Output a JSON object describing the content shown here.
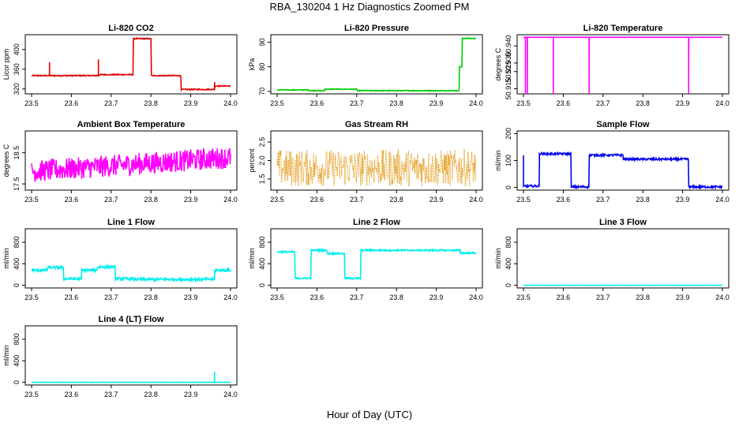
{
  "figure": {
    "title": "RBA_130204  1 Hz Diagnostics Zoomed PM",
    "xlabel": "Hour of Day (UTC)"
  },
  "chart_data": [
    {
      "type": "line",
      "title": "Li-820 CO2",
      "ylabel": "Licor ppm",
      "color": "#e00000",
      "xlim": [
        23.5,
        24.0
      ],
      "ylim": [
        310,
        430
      ],
      "xticks": [
        "23.5",
        "23.6",
        "23.7",
        "23.8",
        "23.9",
        "24.0"
      ],
      "yticks": [
        {
          "v": 320,
          "label": "320"
        },
        {
          "v": 360,
          "label": "360"
        },
        {
          "v": 400,
          "label": "400"
        }
      ],
      "series": [
        {
          "name": "CO2",
          "noise": 1,
          "segments": [
            [
              23.5,
              23.545,
              347
            ],
            [
              23.545,
              23.67,
              347
            ],
            [
              23.67,
              23.755,
              349
            ],
            [
              23.755,
              23.8,
              422
            ],
            [
              23.8,
              23.875,
              347
            ],
            [
              23.875,
              23.96,
              319
            ],
            [
              23.96,
              24.0,
              326
            ]
          ],
          "spikes": [
            [
              23.545,
              374
            ],
            [
              23.668,
              380
            ],
            [
              23.96,
              334
            ]
          ]
        }
      ]
    },
    {
      "type": "line",
      "title": "Li-820 Pressure",
      "ylabel": "kPa",
      "color": "#00cc00",
      "xlim": [
        23.5,
        24.0
      ],
      "ylim": [
        69,
        93
      ],
      "xticks": [
        "23.5",
        "23.6",
        "23.7",
        "23.8",
        "23.9",
        "24.0"
      ],
      "yticks": [
        {
          "v": 70,
          "label": "70"
        },
        {
          "v": 80,
          "label": "80"
        },
        {
          "v": 90,
          "label": "90"
        }
      ],
      "series": [
        {
          "name": "Pressure",
          "noise": 0.15,
          "segments": [
            [
              23.5,
              23.58,
              70.6
            ],
            [
              23.58,
              23.62,
              70.3
            ],
            [
              23.62,
              23.7,
              70.9
            ],
            [
              23.7,
              23.958,
              70.3
            ],
            [
              23.958,
              23.965,
              80
            ],
            [
              23.965,
              24.0,
              91.5
            ]
          ],
          "spikes": []
        }
      ]
    },
    {
      "type": "line",
      "title": "Li-820 Temperature",
      "ylabel": "degrees C",
      "color": "#ff00ff",
      "xlim": [
        23.5,
        24.0
      ],
      "ylim": [
        50.912,
        50.9465
      ],
      "xticks": [
        "23.5",
        "23.6",
        "23.7",
        "23.8",
        "23.9",
        "24.0"
      ],
      "yticks": [
        {
          "v": 50.915,
          "label": "50.915"
        },
        {
          "v": 50.925,
          "label": "50.925"
        },
        {
          "v": 50.93,
          "label": "50.930"
        },
        {
          "v": 50.94,
          "label": "50.940"
        }
      ],
      "series": [
        {
          "name": "Temperature",
          "noise": 0,
          "segments": [
            [
              23.5,
              24.0,
              50.945
            ]
          ],
          "spikes": [
            [
              23.505,
              50.912
            ],
            [
              23.51,
              50.912
            ],
            [
              23.575,
              50.912
            ],
            [
              23.665,
              50.912
            ],
            [
              23.915,
              50.912
            ]
          ]
        }
      ]
    },
    {
      "type": "line",
      "title": "Ambient Box Temperature",
      "ylabel": "degrees C",
      "color": "#ff00ff",
      "xlim": [
        23.5,
        24.0
      ],
      "ylim": [
        17.3,
        19.2
      ],
      "xticks": [
        "23.5",
        "23.6",
        "23.7",
        "23.8",
        "23.9",
        "24.0"
      ],
      "yticks": [
        {
          "v": 17.5,
          "label": "17.5"
        },
        {
          "v": 18.5,
          "label": "18.5"
        }
      ],
      "series": [
        {
          "name": "Box Temp",
          "noise": 0.35,
          "trend": [
            17.9,
            18.35
          ],
          "segments": [
            [
              23.5,
              24.0,
              0
            ]
          ],
          "spikes": []
        }
      ]
    },
    {
      "type": "line",
      "title": "Gas Stream RH",
      "ylabel": "percent",
      "color": "#e09000",
      "dotted": true,
      "xlim": [
        23.5,
        24.0
      ],
      "ylim": [
        1.2,
        2.8
      ],
      "xticks": [
        "23.5",
        "23.6",
        "23.7",
        "23.8",
        "23.9",
        "24.0"
      ],
      "yticks": [
        {
          "v": 1.5,
          "label": "1.5"
        },
        {
          "v": 2.0,
          "label": "2.0"
        },
        {
          "v": 2.5,
          "label": "2.5"
        }
      ],
      "series": [
        {
          "name": "RH",
          "noise": 0.5,
          "trend": [
            1.8,
            1.8
          ],
          "segments": [
            [
              23.5,
              24.0,
              0
            ]
          ],
          "spikes": []
        }
      ]
    },
    {
      "type": "line",
      "title": "Sample Flow",
      "ylabel": "ml/min",
      "color": "#0000ee",
      "xlim": [
        23.5,
        24.0
      ],
      "ylim": [
        -10,
        210
      ],
      "xticks": [
        "23.5",
        "23.6",
        "23.7",
        "23.8",
        "23.9",
        "24.0"
      ],
      "yticks": [
        {
          "v": 0,
          "label": "0"
        },
        {
          "v": 100,
          "label": "100"
        },
        {
          "v": 200,
          "label": "200"
        }
      ],
      "series": [
        {
          "name": "Sample Flow",
          "noise": 4,
          "segments": [
            [
              23.5,
              23.54,
              5
            ],
            [
              23.54,
              23.62,
              125
            ],
            [
              23.62,
              23.665,
              2
            ],
            [
              23.665,
              23.75,
              120
            ],
            [
              23.75,
              23.915,
              105
            ],
            [
              23.915,
              24.0,
              2
            ]
          ],
          "spikes": [
            [
              23.5,
              120
            ],
            [
              23.54,
              100
            ]
          ]
        }
      ]
    },
    {
      "type": "line",
      "title": "Line 1 Flow",
      "ylabel": "ml/min",
      "color": "#00eeee",
      "xlim": [
        23.5,
        24.0
      ],
      "ylim": [
        -50,
        1050
      ],
      "xticks": [
        "23.5",
        "23.6",
        "23.7",
        "23.8",
        "23.9",
        "24.0"
      ],
      "yticks": [
        {
          "v": 0,
          "label": "0"
        },
        {
          "v": 400,
          "label": "400"
        },
        {
          "v": 800,
          "label": "800"
        }
      ],
      "series": [
        {
          "name": "Line 1",
          "noise": 25,
          "segments": [
            [
              23.5,
              23.54,
              280
            ],
            [
              23.54,
              23.58,
              330
            ],
            [
              23.58,
              23.625,
              120
            ],
            [
              23.625,
              23.665,
              280
            ],
            [
              23.665,
              23.71,
              340
            ],
            [
              23.71,
              23.755,
              120
            ],
            [
              23.755,
              23.96,
              110
            ],
            [
              23.96,
              24.0,
              280
            ]
          ],
          "spikes": []
        }
      ]
    },
    {
      "type": "line",
      "title": "Line 2 Flow",
      "ylabel": "ml/min",
      "color": "#00eeee",
      "xlim": [
        23.5,
        24.0
      ],
      "ylim": [
        -50,
        1050
      ],
      "xticks": [
        "23.5",
        "23.6",
        "23.7",
        "23.8",
        "23.9",
        "24.0"
      ],
      "yticks": [
        {
          "v": 0,
          "label": "0"
        },
        {
          "v": 400,
          "label": "400"
        },
        {
          "v": 800,
          "label": "800"
        }
      ],
      "series": [
        {
          "name": "Line 2",
          "noise": 15,
          "segments": [
            [
              23.5,
              23.545,
              620
            ],
            [
              23.545,
              23.585,
              130
            ],
            [
              23.585,
              23.625,
              650
            ],
            [
              23.625,
              23.67,
              590
            ],
            [
              23.67,
              23.71,
              130
            ],
            [
              23.71,
              23.96,
              650
            ],
            [
              23.96,
              24.0,
              600
            ]
          ],
          "spikes": []
        }
      ]
    },
    {
      "type": "line",
      "title": "Line 3 Flow",
      "ylabel": "ml/min",
      "color": "#00eeee",
      "xlim": [
        23.5,
        24.0
      ],
      "ylim": [
        -50,
        1050
      ],
      "xticks": [
        "23.5",
        "23.6",
        "23.7",
        "23.8",
        "23.9",
        "24.0"
      ],
      "yticks": [
        {
          "v": 0,
          "label": "0"
        },
        {
          "v": 400,
          "label": "400"
        },
        {
          "v": 800,
          "label": "800"
        }
      ],
      "series": [
        {
          "name": "Line 3",
          "noise": 3,
          "segments": [
            [
              23.5,
              24.0,
              0
            ]
          ],
          "spikes": []
        }
      ]
    },
    {
      "type": "line",
      "title": "Line 4 (LT) Flow",
      "ylabel": "ml/min",
      "color": "#00eeee",
      "xlim": [
        23.5,
        24.0
      ],
      "ylim": [
        -50,
        1050
      ],
      "xticks": [
        "23.5",
        "23.6",
        "23.7",
        "23.8",
        "23.9",
        "24.0"
      ],
      "yticks": [
        {
          "v": 0,
          "label": "0"
        },
        {
          "v": 400,
          "label": "400"
        },
        {
          "v": 800,
          "label": "800"
        }
      ],
      "series": [
        {
          "name": "Line 4",
          "noise": 3,
          "segments": [
            [
              23.5,
              24.0,
              0
            ]
          ],
          "spikes": [
            [
              23.96,
              200
            ]
          ]
        }
      ]
    }
  ]
}
